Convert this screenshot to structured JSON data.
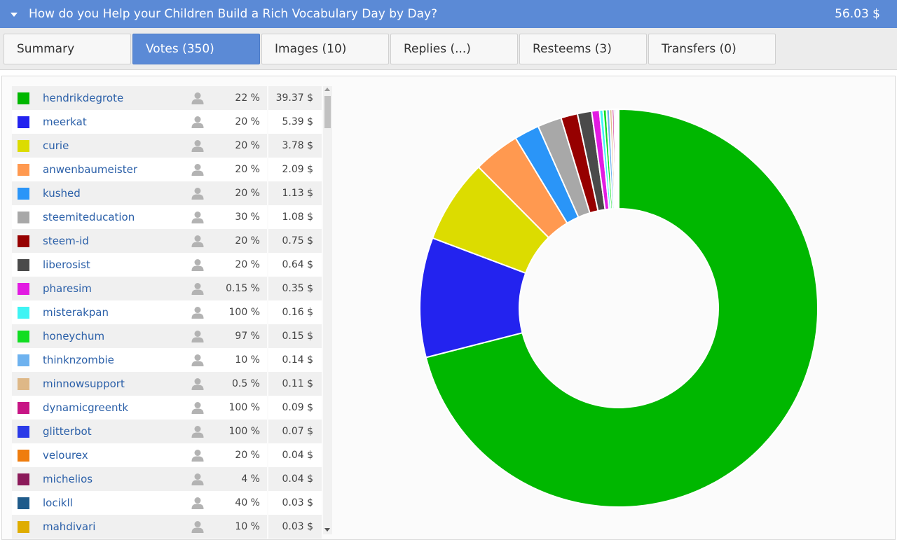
{
  "header": {
    "title": "How do you Help your Children Build a Rich Vocabulary Day by Day?",
    "total": "56.03 $"
  },
  "tabs": [
    {
      "label": "Summary",
      "active": false
    },
    {
      "label": "Votes (350)",
      "active": true
    },
    {
      "label": "Images (10)",
      "active": false
    },
    {
      "label": "Replies (...)",
      "active": false
    },
    {
      "label": "Resteems (3)",
      "active": false
    },
    {
      "label": "Transfers (0)",
      "active": false
    }
  ],
  "voters": [
    {
      "name": "hendrikdegrote",
      "percent": "22 %",
      "value": "39.37 $",
      "color": "#00b700"
    },
    {
      "name": "meerkat",
      "percent": "20 %",
      "value": "5.39 $",
      "color": "#2323ef"
    },
    {
      "name": "curie",
      "percent": "20 %",
      "value": "3.78 $",
      "color": "#dcdc00"
    },
    {
      "name": "anwenbaumeister",
      "percent": "20 %",
      "value": "2.09 $",
      "color": "#ff9950"
    },
    {
      "name": "kushed",
      "percent": "20 %",
      "value": "1.13 $",
      "color": "#2a95f8"
    },
    {
      "name": "steemiteducation",
      "percent": "30 %",
      "value": "1.08 $",
      "color": "#a8a8a8"
    },
    {
      "name": "steem-id",
      "percent": "20 %",
      "value": "0.75 $",
      "color": "#960000"
    },
    {
      "name": "liberosist",
      "percent": "20 %",
      "value": "0.64 $",
      "color": "#4a4a4a"
    },
    {
      "name": "pharesim",
      "percent": "0.15 %",
      "value": "0.35 $",
      "color": "#e21be2"
    },
    {
      "name": "misterakpan",
      "percent": "100 %",
      "value": "0.16 $",
      "color": "#3ff4f4"
    },
    {
      "name": "honeychum",
      "percent": "97 %",
      "value": "0.15 $",
      "color": "#11dd22"
    },
    {
      "name": "thinknzombie",
      "percent": "10 %",
      "value": "0.14 $",
      "color": "#6eb2ef"
    },
    {
      "name": "minnowsupport",
      "percent": "0.5 %",
      "value": "0.11 $",
      "color": "#deb887"
    },
    {
      "name": "dynamicgreentk",
      "percent": "100 %",
      "value": "0.09 $",
      "color": "#c71585"
    },
    {
      "name": "glitterbot",
      "percent": "100 %",
      "value": "0.07 $",
      "color": "#2a3ae8"
    },
    {
      "name": "velourex",
      "percent": "20 %",
      "value": "0.04 $",
      "color": "#ef7d0e"
    },
    {
      "name": "michelios",
      "percent": "4 %",
      "value": "0.04 $",
      "color": "#8b1a5a"
    },
    {
      "name": "locikll",
      "percent": "40 %",
      "value": "0.03 $",
      "color": "#1f5b8a"
    },
    {
      "name": "mahdivari",
      "percent": "10 %",
      "value": "0.03 $",
      "color": "#dfad00"
    }
  ],
  "chart_data": {
    "type": "pie",
    "style": "donut",
    "values": [
      39.37,
      5.39,
      3.78,
      2.09,
      1.13,
      1.08,
      0.75,
      0.64,
      0.35,
      0.16,
      0.15,
      0.14,
      0.11,
      0.09,
      0.07,
      0.04,
      0.04,
      0.03,
      0.03
    ],
    "colors": [
      "#00b700",
      "#2323ef",
      "#dcdc00",
      "#ff9950",
      "#2a95f8",
      "#a8a8a8",
      "#960000",
      "#4a4a4a",
      "#e21be2",
      "#3ff4f4",
      "#11dd22",
      "#6eb2ef",
      "#deb887",
      "#c71585",
      "#2a3ae8",
      "#ef7d0e",
      "#8b1a5a",
      "#1f5b8a",
      "#dfad00"
    ],
    "legend": "none"
  }
}
